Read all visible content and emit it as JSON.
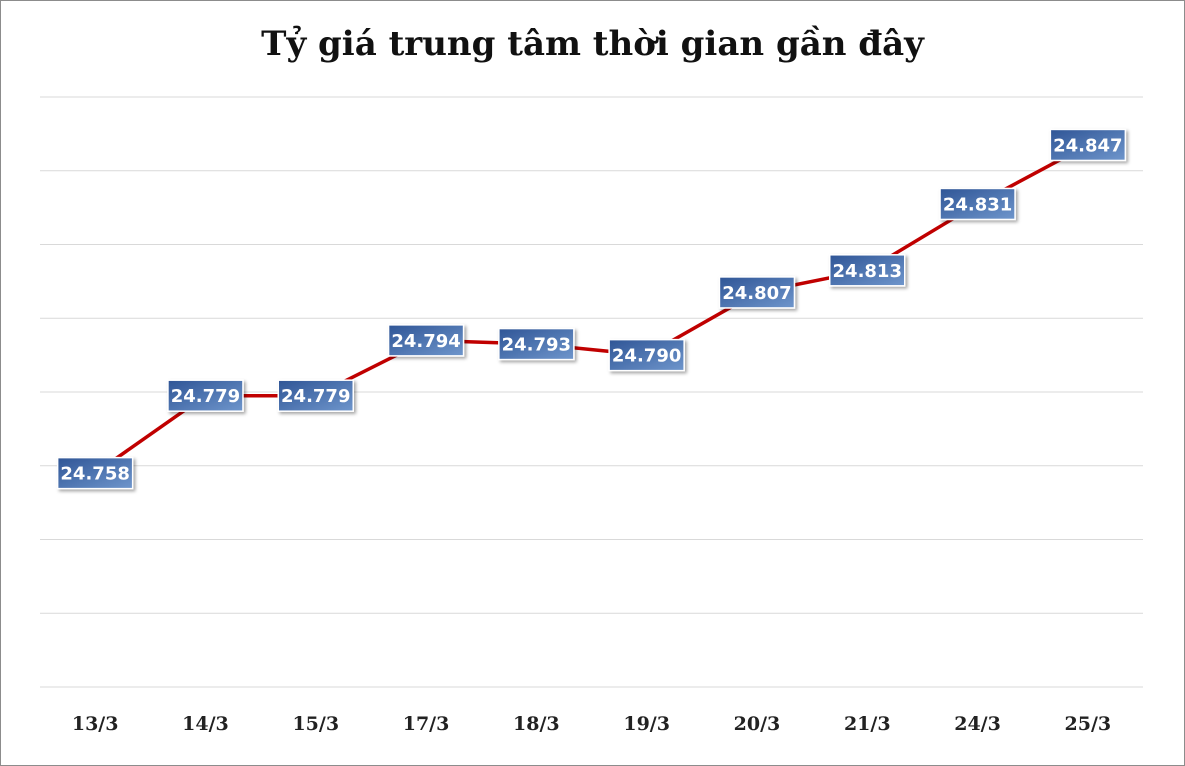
{
  "chart_data": {
    "type": "line",
    "title": "Tỷ giá trung tâm thời gian gần đây",
    "categories": [
      "13/3",
      "14/3",
      "15/3",
      "17/3",
      "18/3",
      "19/3",
      "20/3",
      "21/3",
      "24/3",
      "25/3"
    ],
    "series": [
      {
        "values": [
          24758,
          24779,
          24779,
          24794,
          24793,
          24790,
          24807,
          24813,
          24831,
          24847
        ]
      }
    ],
    "data_labels": [
      "24.758",
      "24.779",
      "24.779",
      "24.794",
      "24.793",
      "24.790",
      "24.807",
      "24.813",
      "24.831",
      "24.847"
    ],
    "ylim": [
      24700,
      24860
    ],
    "grid": true,
    "legend": "none",
    "y_axis_labels": "hidden",
    "colors": {
      "line": "#c00000",
      "label_bg": "#4f7ab8",
      "label_bg_dark": "#2f5596",
      "grid": "#d9d9d9"
    }
  }
}
